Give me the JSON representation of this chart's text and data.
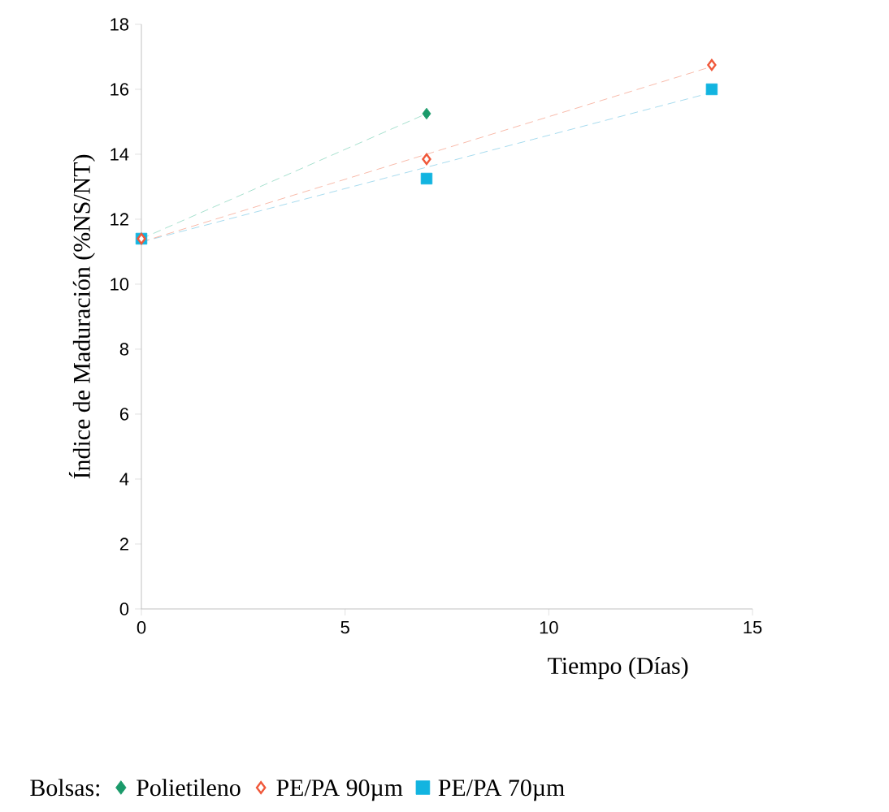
{
  "chart_data": {
    "type": "scatter",
    "xlabel": "Tiempo (Días)",
    "ylabel": "Índice de Maduración (%NS/NT)",
    "legend_title": "Bolsas:",
    "legend": "bottom",
    "grid": false,
    "xlim": [
      0,
      15
    ],
    "xticks": [
      0,
      5,
      10,
      15
    ],
    "ylim": [
      0,
      18
    ],
    "yticks": [
      0,
      2,
      4,
      6,
      8,
      10,
      12,
      14,
      16,
      18
    ],
    "series": [
      {
        "name": "Polietileno",
        "color": "#1a9a6a",
        "marker": "diamond",
        "x": [
          7
        ],
        "values": [
          15.25
        ]
      },
      {
        "name": "PE/PA 90µm",
        "color": "#f0583a",
        "marker": "diamond",
        "x": [
          0,
          7,
          14
        ],
        "values": [
          11.4,
          13.85,
          16.75
        ]
      },
      {
        "name": "PE/PA 70µm",
        "color": "#12b4e0",
        "marker": "square",
        "x": [
          0,
          7,
          14
        ],
        "values": [
          11.4,
          13.25,
          16.0
        ]
      },
      {
        "type": "line",
        "color": "#8fd8c2",
        "line_style": "dashed",
        "marker": "none",
        "x": [
          0,
          7
        ],
        "values": [
          11.4,
          15.25
        ]
      },
      {
        "type": "line",
        "color": "#f6a894",
        "line_style": "dashed",
        "marker": "none",
        "x": [
          0,
          14
        ],
        "values": [
          11.3,
          16.7
        ]
      },
      {
        "type": "line",
        "color": "#90d2ea",
        "line_style": "dashed",
        "marker": "none",
        "x": [
          0,
          14
        ],
        "values": [
          11.3,
          15.9
        ]
      }
    ]
  }
}
